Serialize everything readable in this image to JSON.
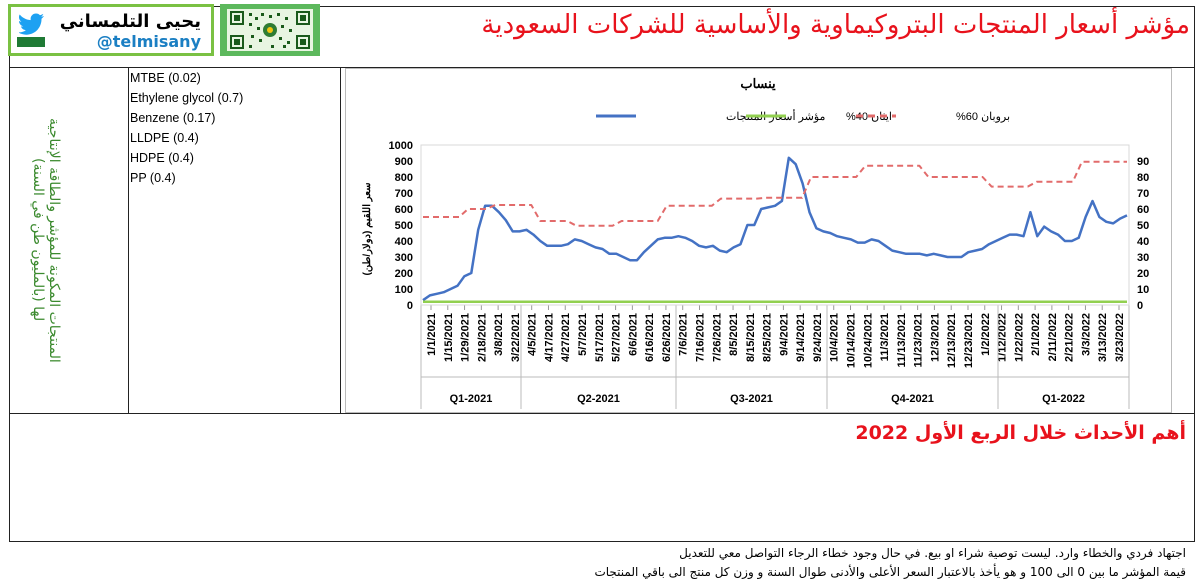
{
  "header": {
    "title": "مؤشر أسعار المنتجات البتروكيماوية والأساسية للشركات السعودية",
    "brand_name": "يحيى التلمساني",
    "brand_handle": "@telmisany"
  },
  "side_label": "المنتجات المكونة للمؤشر والطاقة الإنتاجية لها (بالمليون طن في السنة)",
  "components": [
    "MTBE (0.02)",
    "Ethylene glycol (0.7)",
    "Benzene (0.17)",
    "LLDPE (0.4)",
    "HDPE (0.4)",
    "PP (0.4)"
  ],
  "events_title": "أهم الأحداث خلال الربع الأول 2022",
  "footer": {
    "line1": "اجتهاد فردي والخطاء وارد. ليست توصية شراء او بيع. في حال وجود خطاء الرجاء التواصل معي للتعديل",
    "line2": "قيمة المؤشر ما بين 0 الى 100 و هو يأخذ بالاعتبار السعر الأعلى والأدنى طوال السنة و وزن كل منتج الى باقي المنتجات"
  },
  "colors": {
    "index": "#4472c4",
    "ethane": "#92d050",
    "propane": "#e26b6b",
    "title": "#e8121c"
  },
  "chart_data": {
    "type": "line",
    "title": "ينساب",
    "ylabel": "سعر اللقيم (دولار/طن)",
    "ylim": [
      0,
      1000
    ],
    "y2lim": [
      0,
      100
    ],
    "yticks": [
      0,
      100,
      200,
      300,
      400,
      500,
      600,
      700,
      800,
      900,
      1000
    ],
    "y2ticks": [
      0,
      10,
      20,
      30,
      40,
      50,
      60,
      70,
      80,
      90
    ],
    "grid": false,
    "legend": "top",
    "x_range_days": [
      0,
      100
    ],
    "x_tick_labels": [
      "1/1/2021",
      "1/15/2021",
      "1/29/2021",
      "2/18/2021",
      "3/8/2021",
      "3/22/2021",
      "4/5/2021",
      "4/17/2021",
      "4/27/2021",
      "5/7/2021",
      "5/17/2021",
      "5/27/2021",
      "6/6/2021",
      "6/16/2021",
      "6/26/2021",
      "7/6/2021",
      "7/16/2021",
      "7/26/2021",
      "8/5/2021",
      "8/15/2021",
      "8/25/2021",
      "9/4/2021",
      "9/14/2021",
      "9/24/2021",
      "10/4/2021",
      "10/14/2021",
      "10/24/2021",
      "11/3/2021",
      "11/13/2021",
      "11/23/2021",
      "12/3/2021",
      "12/13/2021",
      "12/23/2021",
      "1/2/2022",
      "1/12/2022",
      "1/22/2022",
      "2/1/2022",
      "2/11/2022",
      "2/21/2022",
      "3/3/2022",
      "3/13/2022",
      "3/23/2022"
    ],
    "quarters": [
      "Q1-2021",
      "Q2-2021",
      "Q3-2021",
      "Q4-2021",
      "Q1-2022"
    ],
    "series": [
      {
        "name": "مؤشر أسعار المنتجات",
        "axis": "right",
        "values": [
          3,
          6,
          7,
          8,
          10,
          12,
          18,
          20,
          47,
          62,
          62,
          58,
          53,
          46,
          46,
          47,
          44,
          40,
          37,
          37,
          37,
          38,
          41,
          40,
          38,
          36,
          35,
          32,
          32,
          30,
          28,
          28,
          33,
          37,
          41,
          42,
          42,
          43,
          42,
          40,
          37,
          36,
          37,
          34,
          33,
          36,
          38,
          50,
          50,
          60,
          61,
          62,
          65,
          92,
          88,
          76,
          58,
          48,
          46,
          45,
          43,
          42,
          41,
          39,
          39,
          41,
          40,
          37,
          34,
          33,
          32,
          32,
          32,
          31,
          32,
          31,
          30,
          30,
          30,
          33,
          34,
          35,
          38,
          40,
          42,
          44,
          44,
          43,
          58,
          43,
          49,
          46,
          44,
          40,
          40,
          42,
          55,
          65,
          55,
          52,
          51,
          54,
          56
        ]
      },
      {
        "name": "بروبان 60%",
        "axis": "left",
        "values": [
          550,
          550,
          550,
          550,
          550,
          600,
          600,
          600,
          625,
          625,
          625,
          625,
          625,
          525,
          525,
          525,
          525,
          495,
          495,
          495,
          495,
          495,
          525,
          525,
          525,
          525,
          525,
          620,
          620,
          620,
          620,
          620,
          620,
          665,
          665,
          665,
          665,
          665,
          670,
          670,
          670,
          670,
          670,
          800,
          800,
          800,
          800,
          800,
          800,
          870,
          870,
          870,
          870,
          870,
          870,
          870,
          800,
          800,
          800,
          800,
          800,
          800,
          800,
          740,
          740,
          740,
          740,
          740,
          770,
          770,
          770,
          770,
          770,
          895,
          895,
          895,
          895,
          895,
          895
        ]
      },
      {
        "name": "ايثان 40%",
        "axis": "left",
        "values": [
          20,
          20,
          20,
          20,
          20,
          20,
          20,
          20,
          20,
          20,
          20,
          20,
          20,
          20,
          20,
          20,
          20,
          20,
          20,
          20,
          20,
          20,
          20,
          20,
          20,
          20,
          20,
          20,
          20,
          20,
          20,
          20,
          20,
          20,
          20,
          20,
          20,
          20,
          20,
          20,
          20,
          20,
          20,
          20,
          20,
          20,
          20,
          20,
          20,
          20,
          20,
          20,
          20,
          20,
          20,
          20,
          20,
          20,
          20,
          20,
          20,
          20,
          20,
          20,
          20,
          20,
          20,
          20,
          20,
          20,
          20,
          20,
          20,
          20,
          20,
          20,
          20,
          20,
          20
        ]
      }
    ]
  }
}
